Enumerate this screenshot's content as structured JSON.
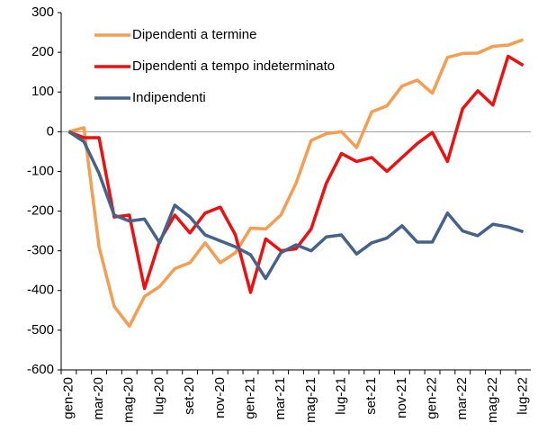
{
  "chart_data": {
    "type": "line",
    "categories": [
      "gen-20",
      null,
      "mar-20",
      null,
      "mag-20",
      null,
      "lug-20",
      null,
      "set-20",
      null,
      "nov-20",
      null,
      "gen-21",
      null,
      "mar-21",
      null,
      "mag-21",
      null,
      "lug-21",
      null,
      "set-21",
      null,
      "nov-21",
      null,
      "gen-22",
      null,
      "mar-22",
      null,
      "mag-22",
      null,
      "lug-22"
    ],
    "series": [
      {
        "name": "Dipendenti a termine",
        "color": "#f59d50",
        "values": [
          0,
          10,
          -290,
          -440,
          -490,
          -415,
          -390,
          -345,
          -330,
          -280,
          -330,
          -305,
          -243,
          -245,
          -210,
          -130,
          -22,
          -5,
          0,
          -40,
          50,
          65,
          115,
          130,
          97,
          187,
          197,
          198,
          215,
          218,
          232
        ]
      },
      {
        "name": "Dipendenti a tempo indeterminato",
        "color": "#ee1010",
        "values": [
          0,
          -15,
          -15,
          -215,
          -210,
          -395,
          -275,
          -210,
          -255,
          -205,
          -190,
          -260,
          -405,
          -270,
          -300,
          -295,
          -245,
          -130,
          -55,
          -75,
          -65,
          -100,
          -65,
          -30,
          -2,
          -75,
          58,
          103,
          67,
          190,
          167
        ]
      },
      {
        "name": "Indipendenti",
        "color": "#45628a",
        "values": [
          0,
          -25,
          -105,
          -210,
          -225,
          -220,
          -280,
          -185,
          -215,
          -260,
          -275,
          -290,
          -310,
          -370,
          -305,
          -285,
          -300,
          -265,
          -260,
          -308,
          -280,
          -268,
          -237,
          -278,
          -278,
          -205,
          -250,
          -262,
          -233,
          -240,
          -252
        ]
      }
    ],
    "ylim": [
      -600,
      300
    ],
    "yticks": [
      -600,
      -500,
      -400,
      -300,
      -200,
      -100,
      0,
      100,
      200,
      300
    ]
  }
}
